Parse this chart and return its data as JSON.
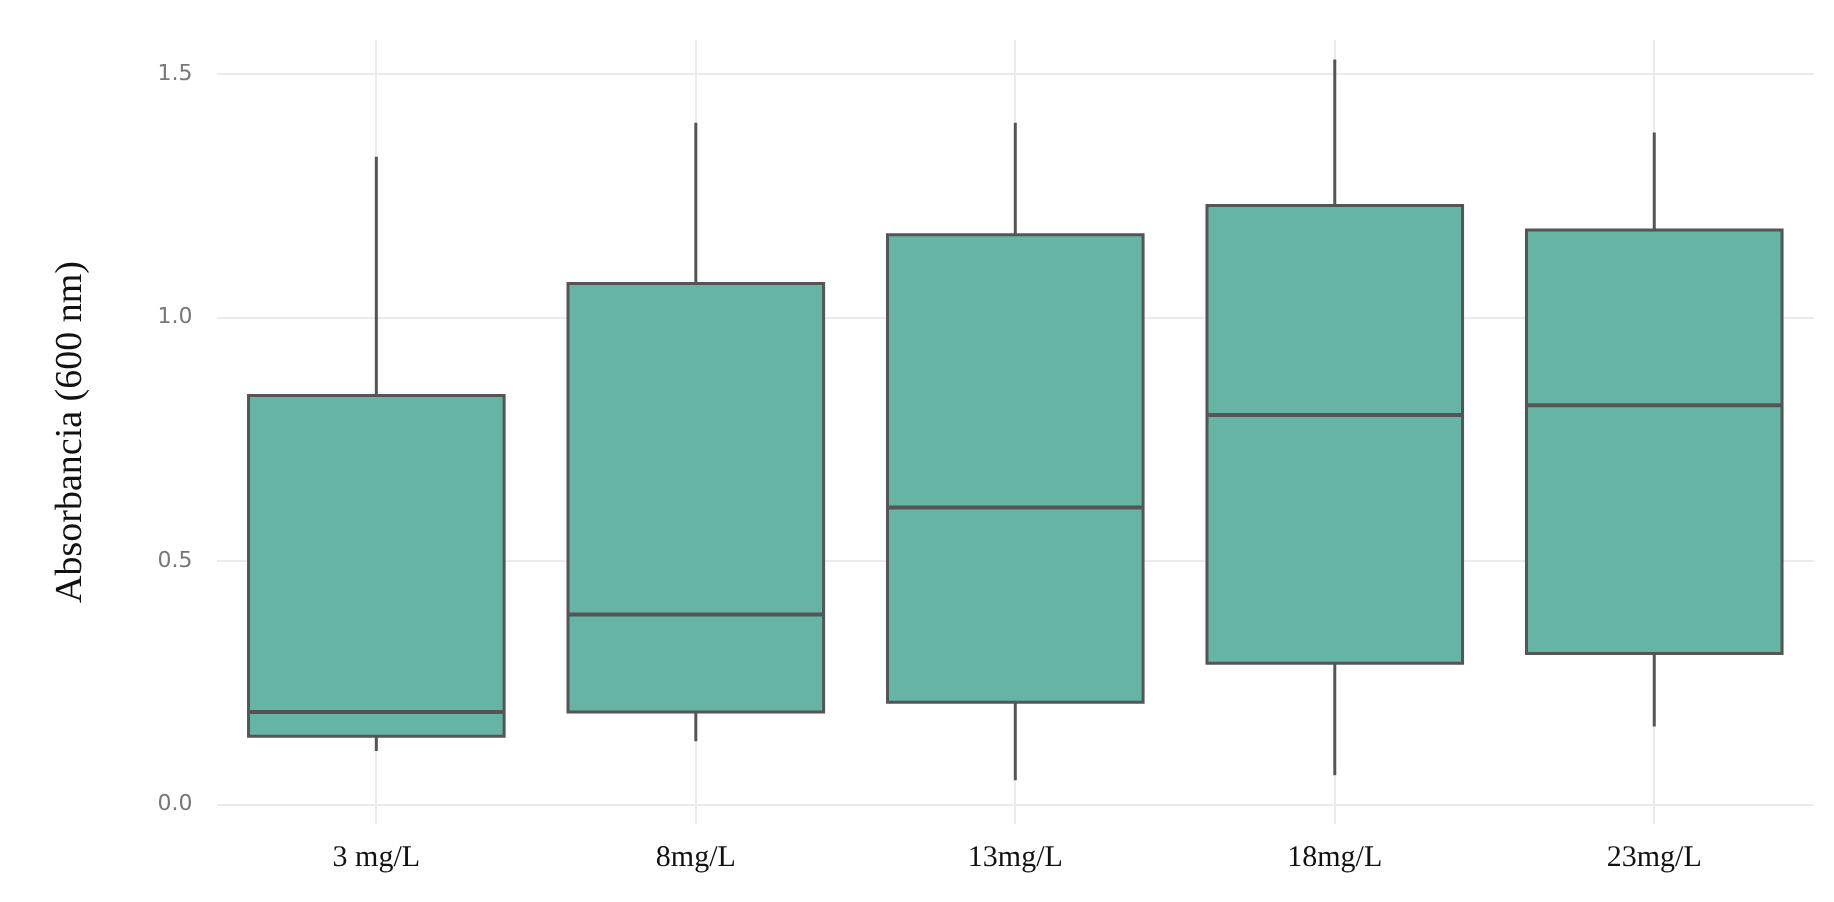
{
  "chart_data": {
    "type": "box",
    "ylabel": "Absorbancia (600 nm)",
    "categories": [
      "3 mg/L",
      "8mg/L",
      "13mg/L",
      "18mg/L",
      "23mg/L"
    ],
    "color": "#66b5a4",
    "boxes": [
      {
        "low": 0.11,
        "q1": 0.14,
        "median": 0.19,
        "q3": 0.84,
        "high": 1.33
      },
      {
        "low": 0.13,
        "q1": 0.19,
        "median": 0.39,
        "q3": 1.07,
        "high": 1.4
      },
      {
        "low": 0.05,
        "q1": 0.21,
        "median": 0.61,
        "q3": 1.17,
        "high": 1.4
      },
      {
        "low": 0.06,
        "q1": 0.29,
        "median": 0.8,
        "q3": 1.23,
        "high": 1.53
      },
      {
        "low": 0.16,
        "q1": 0.31,
        "median": 0.82,
        "q3": 1.18,
        "high": 1.38
      }
    ],
    "ylim": [
      -0.04,
      1.57
    ],
    "yticks": [
      {
        "value": 0,
        "label": "0.0"
      },
      {
        "value": 0.5,
        "label": "0.5"
      },
      {
        "value": 1,
        "label": "1.0"
      },
      {
        "value": 1.5,
        "label": "1.5"
      }
    ],
    "grid": true
  }
}
